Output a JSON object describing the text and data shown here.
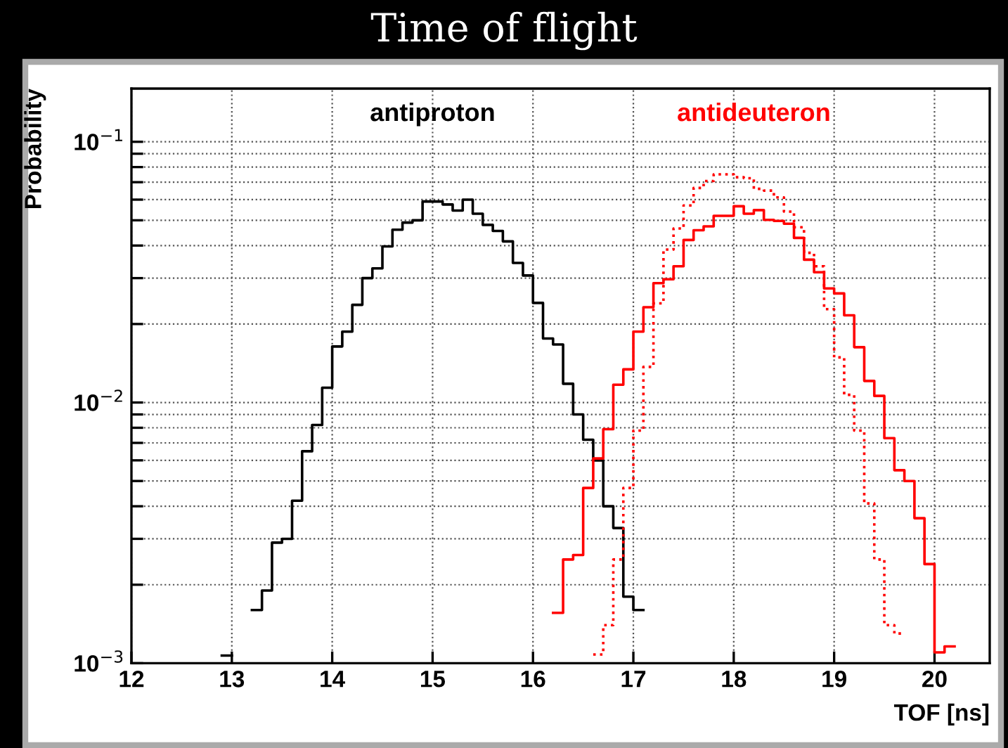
{
  "chart_data": {
    "type": "step",
    "title": "Time of flight",
    "xlabel": "TOF [ns]",
    "ylabel": "Probability",
    "log": "y",
    "grid": true,
    "legend": false,
    "xlim": [
      12,
      20.55
    ],
    "xticks": [
      12,
      13,
      14,
      15,
      16,
      17,
      18,
      19,
      20
    ],
    "ylim": [
      0.001,
      0.16
    ],
    "yticks": [
      {
        "value": 0.001,
        "label": "10$^{−3}$"
      },
      {
        "value": 0.002,
        "label": null
      },
      {
        "value": 0.003,
        "label": null
      },
      {
        "value": 0.004,
        "label": null
      },
      {
        "value": 0.005,
        "label": null
      },
      {
        "value": 0.006,
        "label": null
      },
      {
        "value": 0.007,
        "label": null
      },
      {
        "value": 0.008,
        "label": null
      },
      {
        "value": 0.009,
        "label": null
      },
      {
        "value": 0.01,
        "label": "10$^{−2}$"
      },
      {
        "value": 0.02,
        "label": null
      },
      {
        "value": 0.03,
        "label": null
      },
      {
        "value": 0.04,
        "label": null
      },
      {
        "value": 0.05,
        "label": null
      },
      {
        "value": 0.06,
        "label": null
      },
      {
        "value": 0.07,
        "label": null
      },
      {
        "value": 0.08,
        "label": null
      },
      {
        "value": 0.09,
        "label": null
      },
      {
        "value": 0.1,
        "label": "10$^{−1}$"
      }
    ],
    "series": [
      {
        "name": "antiproton",
        "color": "#000000",
        "line_style": "solid",
        "x": [
          12.9,
          13.0,
          13.1,
          13.2,
          13.3,
          13.4,
          13.5,
          13.6,
          13.7,
          13.8,
          13.9,
          14.0,
          14.1,
          14.2,
          14.3,
          14.4,
          14.5,
          14.6,
          14.7,
          14.8,
          14.9,
          15.0,
          15.1,
          15.2,
          15.3,
          15.4,
          15.5,
          15.6,
          15.7,
          15.8,
          15.9,
          16.0,
          16.1,
          16.2,
          16.3,
          16.4,
          16.5,
          16.6,
          16.7,
          16.8,
          16.9,
          17.0,
          17.1
        ],
        "values": [
          0.00107,
          null,
          null,
          0.0016,
          0.0019,
          0.0029,
          0.003,
          0.0042,
          0.0065,
          0.0082,
          0.0114,
          0.0164,
          0.0187,
          0.0237,
          0.03,
          0.0327,
          0.0397,
          0.046,
          0.049,
          0.05,
          0.059,
          0.059,
          0.0575,
          0.0545,
          0.06,
          0.053,
          0.048,
          0.0455,
          0.0415,
          0.0343,
          0.0307,
          0.0241,
          0.0176,
          0.0167,
          0.0118,
          0.009,
          0.0072,
          0.006,
          0.004,
          0.0033,
          0.0018,
          0.0016,
          0.0016
        ]
      },
      {
        "name": "antideuteron",
        "color": "#ff0000",
        "line_style": "solid",
        "x": [
          16.2,
          16.3,
          16.4,
          16.5,
          16.6,
          16.7,
          16.8,
          16.9,
          17.0,
          17.1,
          17.2,
          17.3,
          17.4,
          17.5,
          17.6,
          17.7,
          17.8,
          17.9,
          18.0,
          18.1,
          18.2,
          18.3,
          18.4,
          18.5,
          18.6,
          18.7,
          18.8,
          18.9,
          19.0,
          19.1,
          19.2,
          19.3,
          19.4,
          19.5,
          19.6,
          19.7,
          19.8,
          19.9,
          20.0,
          20.1,
          20.2
        ],
        "values": [
          0.00156,
          0.0025,
          0.0026,
          0.0047,
          0.0061,
          0.0079,
          0.0117,
          0.0134,
          0.0187,
          0.0232,
          0.0287,
          0.0297,
          0.0333,
          0.042,
          0.0458,
          0.0474,
          0.052,
          0.052,
          0.0566,
          0.053,
          0.0547,
          0.0502,
          0.0497,
          0.0485,
          0.0428,
          0.0353,
          0.0316,
          0.0274,
          0.0262,
          0.0216,
          0.0163,
          0.0121,
          0.0106,
          0.0073,
          0.0055,
          0.005,
          0.0036,
          0.0024,
          0.0011,
          0.00116,
          0.00116
        ]
      },
      {
        "color": "#ff0000",
        "line_style": "dotted",
        "x": [
          16.6,
          16.7,
          16.8,
          16.9,
          17.0,
          17.1,
          17.2,
          17.3,
          17.4,
          17.5,
          17.6,
          17.7,
          17.8,
          17.9,
          18.0,
          18.1,
          18.2,
          18.3,
          18.4,
          18.5,
          18.6,
          18.7,
          18.8,
          18.9,
          19.0,
          19.1,
          19.2,
          19.3,
          19.4,
          19.5,
          19.6,
          19.7
        ],
        "values": [
          0.00108,
          0.0014,
          0.0025,
          0.0047,
          0.0078,
          0.0137,
          0.024,
          0.0386,
          0.0465,
          0.057,
          0.0665,
          0.0707,
          0.075,
          0.075,
          0.0731,
          0.0725,
          0.066,
          0.065,
          0.0612,
          0.054,
          0.047,
          0.0375,
          0.0333,
          0.0228,
          0.0149,
          0.0107,
          0.0078,
          0.0041,
          0.0025,
          0.0014,
          0.0013,
          0.0013
        ]
      }
    ]
  }
}
